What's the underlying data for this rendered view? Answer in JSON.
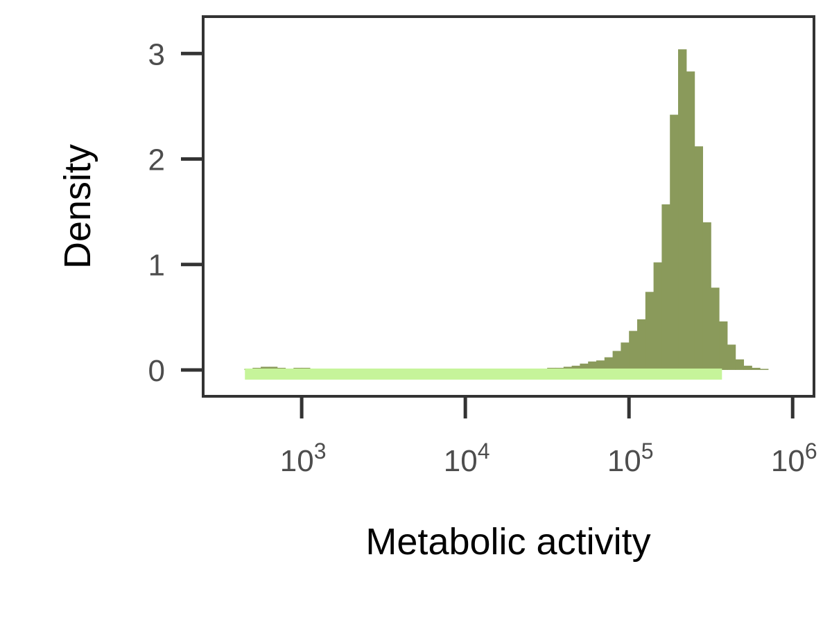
{
  "chart_data": {
    "type": "bar",
    "subtype": "histogram",
    "title": "",
    "xlabel": "Metabolic activity",
    "ylabel": "Density",
    "x_scale": "log10",
    "xlim": [
      250,
      1350000
    ],
    "ylim": [
      -0.25,
      3.35
    ],
    "grid": false,
    "legend": "none",
    "colors": {
      "bars": "#8a9a5b",
      "baseline": "#c6f49a",
      "axes": "#333333",
      "tick_text": "#4d4d4d",
      "label_text": "#000000"
    },
    "x_ticks": [
      {
        "value": 1000,
        "base": "10",
        "exp": "3"
      },
      {
        "value": 10000,
        "base": "10",
        "exp": "4"
      },
      {
        "value": 100000,
        "base": "10",
        "exp": "5"
      },
      {
        "value": 1000000,
        "base": "10",
        "exp": "6"
      }
    ],
    "y_ticks": [
      {
        "value": 0,
        "label": "0"
      },
      {
        "value": 1,
        "label": "1"
      },
      {
        "value": 2,
        "label": "2"
      },
      {
        "value": 3,
        "label": "3"
      }
    ],
    "baseline_band": {
      "x_start": 450,
      "x_end": 370000
    },
    "bins": {
      "log_start": 2.65,
      "log_width": 0.05,
      "density": [
        0.01,
        0.02,
        0.03,
        0.03,
        0.02,
        0.01,
        0.02,
        0.02,
        0.01,
        0.01,
        0.01,
        0.01,
        0.01,
        0.01,
        0.01,
        0.01,
        0.01,
        0.01,
        0.01,
        0.01,
        0.01,
        0.01,
        0.01,
        0.01,
        0.01,
        0.01,
        0.01,
        0.01,
        0.01,
        0.01,
        0.01,
        0.01,
        0.01,
        0.01,
        0.01,
        0.01,
        0.01,
        0.02,
        0.02,
        0.03,
        0.04,
        0.06,
        0.08,
        0.09,
        0.12,
        0.18,
        0.26,
        0.37,
        0.48,
        0.74,
        1.02,
        1.57,
        2.42,
        3.04,
        2.83,
        2.12,
        1.4,
        0.78,
        0.46,
        0.24,
        0.1,
        0.04,
        0.02,
        0.01
      ]
    }
  }
}
